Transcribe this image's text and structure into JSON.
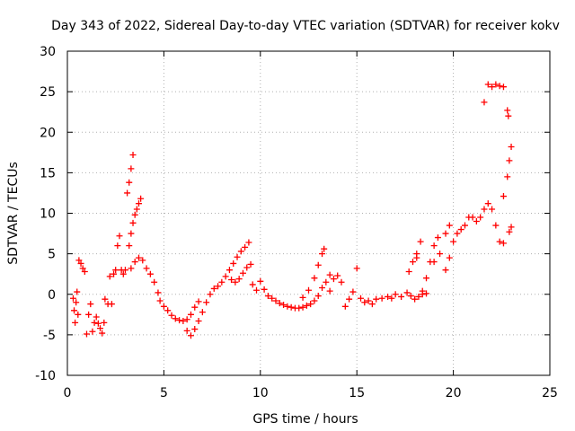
{
  "chart_data": {
    "type": "scatter",
    "title": "Day 343 of 2022, Sidereal Day-to-day VTEC variation (SDTVAR) for receiver kokv",
    "xlabel": "GPS time / hours",
    "ylabel": "SDTVAR / TECUs",
    "xlim": [
      0,
      25
    ],
    "ylim": [
      -10,
      30
    ],
    "xticks": [
      0,
      5,
      10,
      15,
      20,
      25
    ],
    "yticks": [
      -10,
      -5,
      0,
      5,
      10,
      15,
      20,
      25,
      30
    ],
    "grid": true,
    "legend": "none",
    "marker": "+",
    "series": [
      {
        "name": "SDTVAR",
        "color": "#ff0000",
        "points": [
          [
            0.3,
            -0.5
          ],
          [
            0.35,
            -2
          ],
          [
            0.4,
            -3.5
          ],
          [
            0.45,
            -1
          ],
          [
            0.5,
            0.3
          ],
          [
            0.55,
            -2.5
          ],
          [
            0.6,
            4.2
          ],
          [
            0.7,
            3.8
          ],
          [
            0.8,
            3.2
          ],
          [
            0.9,
            2.8
          ],
          [
            1.0,
            -4.9
          ],
          [
            1.1,
            -2.5
          ],
          [
            1.2,
            -1.2
          ],
          [
            1.3,
            -4.6
          ],
          [
            1.4,
            -3.5
          ],
          [
            1.5,
            -2.8
          ],
          [
            1.6,
            -3.6
          ],
          [
            1.7,
            -4.2
          ],
          [
            1.8,
            -4.8
          ],
          [
            1.9,
            -3.5
          ],
          [
            1.95,
            -0.6
          ],
          [
            2.1,
            -1.2
          ],
          [
            2.2,
            2.2
          ],
          [
            2.3,
            -1.2
          ],
          [
            2.4,
            2.5
          ],
          [
            2.5,
            3.0
          ],
          [
            2.6,
            6.0
          ],
          [
            2.7,
            7.2
          ],
          [
            2.8,
            3.0
          ],
          [
            2.9,
            2.5
          ],
          [
            3.0,
            3.0
          ],
          [
            3.1,
            12.5
          ],
          [
            3.2,
            13.8
          ],
          [
            3.3,
            15.5
          ],
          [
            3.4,
            17.2
          ],
          [
            3.2,
            6.0
          ],
          [
            3.3,
            7.5
          ],
          [
            3.4,
            8.8
          ],
          [
            3.5,
            9.8
          ],
          [
            3.6,
            10.5
          ],
          [
            3.7,
            11.2
          ],
          [
            3.8,
            11.8
          ],
          [
            3.3,
            3.2
          ],
          [
            3.5,
            4.0
          ],
          [
            3.7,
            4.5
          ],
          [
            3.9,
            4.2
          ],
          [
            4.1,
            3.2
          ],
          [
            4.3,
            2.5
          ],
          [
            4.5,
            1.5
          ],
          [
            4.7,
            0.2
          ],
          [
            4.8,
            -0.8
          ],
          [
            5.0,
            -1.5
          ],
          [
            5.2,
            -2.0
          ],
          [
            5.4,
            -2.6
          ],
          [
            5.6,
            -3.0
          ],
          [
            5.8,
            -3.2
          ],
          [
            6.0,
            -3.3
          ],
          [
            6.2,
            -3.1
          ],
          [
            6.4,
            -2.5
          ],
          [
            6.6,
            -1.6
          ],
          [
            6.8,
            -0.9
          ],
          [
            6.2,
            -4.5
          ],
          [
            6.4,
            -5.1
          ],
          [
            6.6,
            -4.3
          ],
          [
            6.8,
            -3.3
          ],
          [
            7.0,
            -2.2
          ],
          [
            7.2,
            -1.0
          ],
          [
            7.4,
            0.0
          ],
          [
            7.6,
            0.7
          ],
          [
            7.8,
            1.0
          ],
          [
            8.0,
            1.5
          ],
          [
            8.2,
            2.2
          ],
          [
            8.4,
            3.0
          ],
          [
            8.6,
            3.8
          ],
          [
            8.8,
            4.6
          ],
          [
            9.0,
            5.3
          ],
          [
            9.2,
            5.8
          ],
          [
            9.4,
            6.4
          ],
          [
            8.5,
            1.8
          ],
          [
            8.7,
            1.5
          ],
          [
            8.9,
            1.9
          ],
          [
            9.1,
            2.6
          ],
          [
            9.3,
            3.3
          ],
          [
            9.5,
            3.7
          ],
          [
            9.6,
            1.2
          ],
          [
            9.8,
            0.5
          ],
          [
            10.0,
            1.6
          ],
          [
            10.2,
            0.6
          ],
          [
            10.4,
            -0.2
          ],
          [
            10.6,
            -0.5
          ],
          [
            10.8,
            -0.8
          ],
          [
            11.0,
            -1.1
          ],
          [
            11.2,
            -1.3
          ],
          [
            11.4,
            -1.5
          ],
          [
            11.6,
            -1.6
          ],
          [
            11.8,
            -1.7
          ],
          [
            12.0,
            -1.7
          ],
          [
            12.2,
            -1.6
          ],
          [
            12.4,
            -1.4
          ],
          [
            12.6,
            -1.2
          ],
          [
            12.8,
            -0.8
          ],
          [
            13.0,
            -0.2
          ],
          [
            13.2,
            0.8
          ],
          [
            13.4,
            1.5
          ],
          [
            13.6,
            0.4
          ],
          [
            12.2,
            -0.4
          ],
          [
            12.5,
            0.5
          ],
          [
            12.8,
            2.0
          ],
          [
            13.0,
            3.6
          ],
          [
            13.2,
            5.0
          ],
          [
            13.3,
            5.6
          ],
          [
            13.6,
            2.4
          ],
          [
            13.8,
            1.9
          ],
          [
            14.0,
            2.3
          ],
          [
            14.2,
            1.5
          ],
          [
            14.4,
            -1.5
          ],
          [
            14.6,
            -0.6
          ],
          [
            14.8,
            0.3
          ],
          [
            15.0,
            3.2
          ],
          [
            15.2,
            -0.5
          ],
          [
            15.4,
            -1.0
          ],
          [
            15.6,
            -0.8
          ],
          [
            15.8,
            -1.2
          ],
          [
            16.0,
            -0.6
          ],
          [
            16.3,
            -0.5
          ],
          [
            16.6,
            -0.3
          ],
          [
            16.8,
            -0.5
          ],
          [
            17.0,
            0.0
          ],
          [
            17.3,
            -0.3
          ],
          [
            17.6,
            0.2
          ],
          [
            17.8,
            -0.2
          ],
          [
            18.0,
            -0.6
          ],
          [
            18.2,
            -0.3
          ],
          [
            18.4,
            0.4
          ],
          [
            18.6,
            0.1
          ],
          [
            17.7,
            2.8
          ],
          [
            17.9,
            4.0
          ],
          [
            18.1,
            5.0
          ],
          [
            18.3,
            6.5
          ],
          [
            18.1,
            4.5
          ],
          [
            18.4,
            0.0
          ],
          [
            18.6,
            2.0
          ],
          [
            18.8,
            4.0
          ],
          [
            19.0,
            6.0
          ],
          [
            19.2,
            7.0
          ],
          [
            19.0,
            4.0
          ],
          [
            19.3,
            5.0
          ],
          [
            19.6,
            7.5
          ],
          [
            19.8,
            8.5
          ],
          [
            19.6,
            3.0
          ],
          [
            19.8,
            4.5
          ],
          [
            20.0,
            6.5
          ],
          [
            20.2,
            7.5
          ],
          [
            20.4,
            8.0
          ],
          [
            20.6,
            8.5
          ],
          [
            20.8,
            9.5
          ],
          [
            21.0,
            9.5
          ],
          [
            21.2,
            9.0
          ],
          [
            21.4,
            9.5
          ],
          [
            21.6,
            10.5
          ],
          [
            21.8,
            11.2
          ],
          [
            22.0,
            10.5
          ],
          [
            22.2,
            8.5
          ],
          [
            22.4,
            6.5
          ],
          [
            22.6,
            6.3
          ],
          [
            22.6,
            12.1
          ],
          [
            21.6,
            23.7
          ],
          [
            21.8,
            25.9
          ],
          [
            22.0,
            25.6
          ],
          [
            22.2,
            25.9
          ],
          [
            22.4,
            25.7
          ],
          [
            22.6,
            25.6
          ],
          [
            22.8,
            22.7
          ],
          [
            22.85,
            22.0
          ],
          [
            22.8,
            14.5
          ],
          [
            22.9,
            16.5
          ],
          [
            23.0,
            18.2
          ],
          [
            22.9,
            7.7
          ],
          [
            23.0,
            8.3
          ]
        ]
      }
    ]
  }
}
